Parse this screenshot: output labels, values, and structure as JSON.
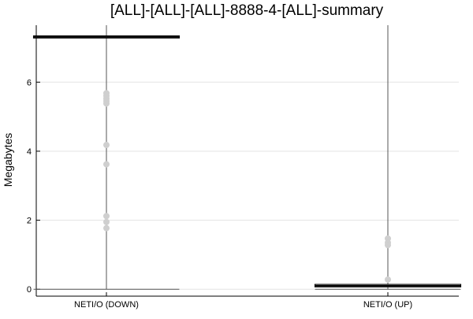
{
  "chart_data": {
    "type": "box",
    "title": "[ALL]-[ALL]-[ALL]-8888-4-[ALL]-summary",
    "xlabel": "",
    "ylabel": "Megabytes",
    "ylim": [
      -0.2,
      7.65
    ],
    "yticks": [
      0,
      2,
      4,
      6
    ],
    "grid": true,
    "categories": [
      "NETI/O (DOWN)",
      "NETI/O (UP)"
    ],
    "boxes": [
      {
        "category": "NETI/O (DOWN)",
        "min": 0.0,
        "q1": 7.28,
        "median": 7.31,
        "q3": 7.34,
        "max": 7.65,
        "outliers": [
          5.68,
          5.6,
          5.52,
          5.45,
          5.38,
          4.18,
          3.62,
          2.12,
          1.95,
          1.77
        ]
      },
      {
        "category": "NETI/O (UP)",
        "min": 0.0,
        "q1": 0.07,
        "median": 0.1,
        "q3": 0.14,
        "max": 7.65,
        "outliers": [
          1.47,
          1.35,
          1.28,
          0.28
        ]
      }
    ],
    "colors": {
      "box_stroke": "#000000",
      "whisker": "#555555",
      "outlier": "#cfcfcf",
      "grid": "#e3e3e3"
    }
  }
}
